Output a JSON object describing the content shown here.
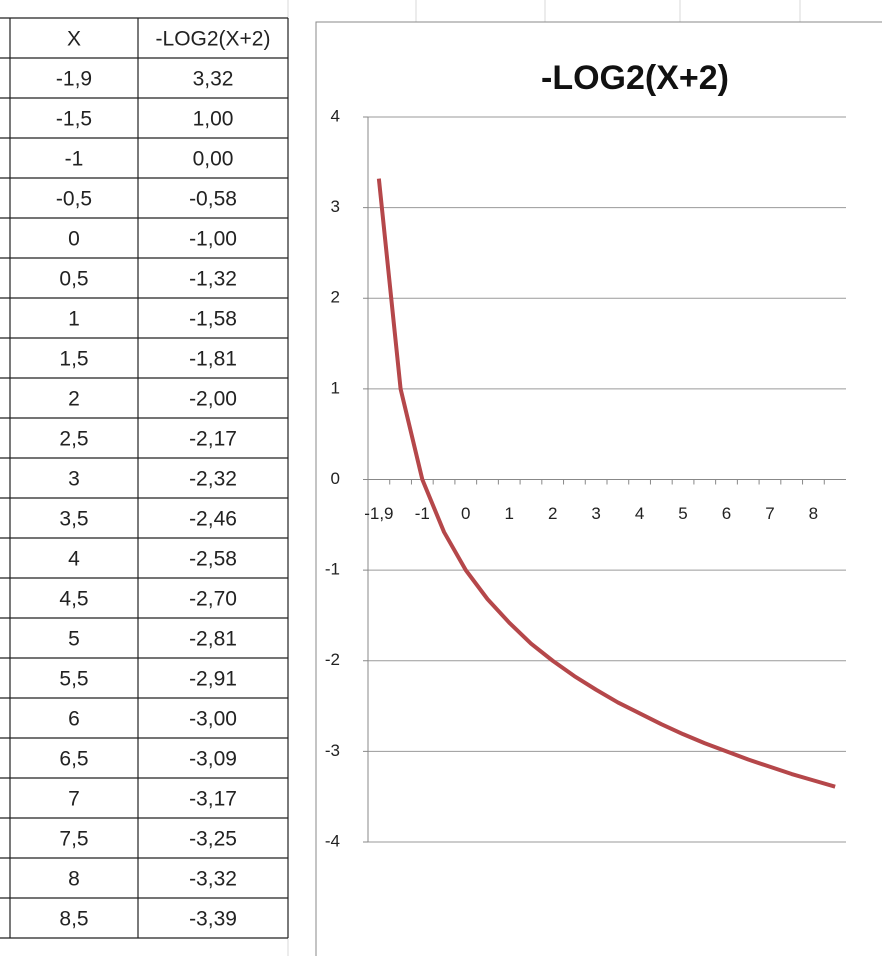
{
  "table": {
    "headers": [
      "X",
      "-LOG2(X+2)"
    ],
    "rows": [
      [
        "-1,9",
        "3,32"
      ],
      [
        "-1,5",
        "1,00"
      ],
      [
        "-1",
        "0,00"
      ],
      [
        "-0,5",
        "-0,58"
      ],
      [
        "0",
        "-1,00"
      ],
      [
        "0,5",
        "-1,32"
      ],
      [
        "1",
        "-1,58"
      ],
      [
        "1,5",
        "-1,81"
      ],
      [
        "2",
        "-2,00"
      ],
      [
        "2,5",
        "-2,17"
      ],
      [
        "3",
        "-2,32"
      ],
      [
        "3,5",
        "-2,46"
      ],
      [
        "4",
        "-2,58"
      ],
      [
        "4,5",
        "-2,70"
      ],
      [
        "5",
        "-2,81"
      ],
      [
        "5,5",
        "-2,91"
      ],
      [
        "6",
        "-3,00"
      ],
      [
        "6,5",
        "-3,09"
      ],
      [
        "7",
        "-3,17"
      ],
      [
        "7,5",
        "-3,25"
      ],
      [
        "8",
        "-3,32"
      ],
      [
        "8,5",
        "-3,39"
      ]
    ]
  },
  "chart_data": {
    "type": "line",
    "title": "-LOG2(X+2)",
    "categories": [
      "-1,9",
      null,
      "-1",
      null,
      "0",
      null,
      "1",
      null,
      "2",
      null,
      "3",
      null,
      "4",
      null,
      "5",
      null,
      "6",
      null,
      "7",
      null,
      "8",
      null
    ],
    "series": [
      {
        "color": "#b5474a",
        "values": [
          3.32,
          1.0,
          0.0,
          -0.58,
          -1.0,
          -1.32,
          -1.58,
          -1.81,
          -2.0,
          -2.17,
          -2.32,
          -2.46,
          -2.58,
          -2.7,
          -2.81,
          -2.91,
          -3.0,
          -3.09,
          -3.17,
          -3.25,
          -3.32,
          -3.39
        ]
      }
    ],
    "ylim": [
      -4,
      4
    ],
    "yticks": [
      4,
      3,
      2,
      1,
      0,
      -1,
      -2,
      -3,
      -4
    ],
    "grid": true
  }
}
